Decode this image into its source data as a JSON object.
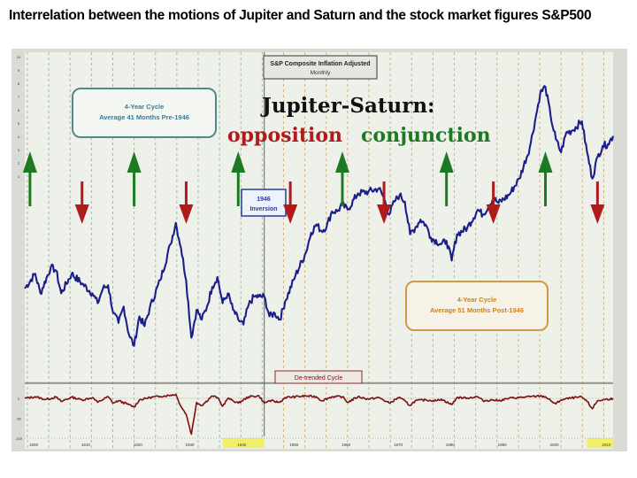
{
  "page_title": "Interrelation between the motions of Jupiter and Saturn and the stock market figures S&P500",
  "colors": {
    "price_line": "#1a1f8a",
    "detrended_line": "#7a1010",
    "conjunction_arrow": "#1e7a22",
    "opposition_arrow": "#b01a1a",
    "pre1946_grid": "#8fb08f",
    "post1946_grid": "#e0a040",
    "plot_bg": "#eef0ea",
    "highlight_band": "#f2f06a"
  },
  "chart_data": [
    {
      "type": "line",
      "title": "S&P Composite Inflation Adjusted",
      "subtitle": "Monthly",
      "heading": "Jupiter-Saturn:",
      "legend": [
        {
          "label": "opposition",
          "color": "#b01a1a"
        },
        {
          "label": "conjunction",
          "color": "#1e7a22"
        }
      ],
      "annotations": [
        {
          "lines": [
            "4-Year Cycle",
            "Average 41 Months Pre-1946"
          ]
        },
        {
          "lines": [
            "1946",
            "Inversion"
          ]
        },
        {
          "lines": [
            "4-Year Cycle",
            "Average 51 Months Post-1946"
          ]
        }
      ],
      "x_ticks": [
        "1900",
        "1910",
        "1920",
        "1930",
        "1940",
        "1950",
        "1960",
        "1970",
        "1980",
        "1990",
        "2000",
        "2010"
      ],
      "y_ticks": [
        "10",
        "9",
        "8",
        "7",
        "6",
        "5",
        "4",
        "3",
        "2",
        "1"
      ],
      "conjunction_years": [
        1901,
        1921,
        1941,
        1961,
        1981,
        2000
      ],
      "opposition_years": [
        1911,
        1931,
        1951,
        1969,
        1990,
        2010
      ],
      "series": [
        {
          "points": [
            [
              1900,
              0.25
            ],
            [
              1902,
              0.34
            ],
            [
              1903,
              0.22
            ],
            [
              1905,
              0.38
            ],
            [
              1906,
              0.36
            ],
            [
              1907,
              0.22
            ],
            [
              1909,
              0.34
            ],
            [
              1911,
              0.28
            ],
            [
              1913,
              0.22
            ],
            [
              1914,
              0.16
            ],
            [
              1915,
              0.25
            ],
            [
              1916,
              0.27
            ],
            [
              1917,
              0.1
            ],
            [
              1918,
              0.04
            ],
            [
              1919,
              0.14
            ],
            [
              1920,
              -0.03
            ],
            [
              1921,
              -0.1
            ],
            [
              1922,
              0.08
            ],
            [
              1923,
              0.02
            ],
            [
              1924,
              0.13
            ],
            [
              1926,
              0.3
            ],
            [
              1928,
              0.52
            ],
            [
              1929,
              0.65
            ],
            [
              1930,
              0.5
            ],
            [
              1931,
              0.3
            ],
            [
              1932,
              -0.05
            ],
            [
              1933,
              0.12
            ],
            [
              1934,
              0.06
            ],
            [
              1935,
              0.14
            ],
            [
              1936,
              0.26
            ],
            [
              1937,
              0.32
            ],
            [
              1938,
              0.16
            ],
            [
              1939,
              0.22
            ],
            [
              1940,
              0.12
            ],
            [
              1941,
              0.06
            ],
            [
              1942,
              0.03
            ],
            [
              1943,
              0.15
            ],
            [
              1944,
              0.2
            ],
            [
              1945,
              0.2
            ],
            [
              1946,
              0.2
            ],
            [
              1947,
              0.08
            ],
            [
              1948,
              0.1
            ],
            [
              1949,
              0.06
            ],
            [
              1950,
              0.17
            ],
            [
              1952,
              0.33
            ],
            [
              1954,
              0.47
            ],
            [
              1955,
              0.59
            ],
            [
              1956,
              0.64
            ],
            [
              1957,
              0.6
            ],
            [
              1958,
              0.63
            ],
            [
              1959,
              0.72
            ],
            [
              1960,
              0.72
            ],
            [
              1961,
              0.76
            ],
            [
              1962,
              0.73
            ],
            [
              1964,
              0.83
            ],
            [
              1966,
              0.84
            ],
            [
              1968,
              0.86
            ],
            [
              1969,
              0.8
            ],
            [
              1970,
              0.7
            ],
            [
              1971,
              0.78
            ],
            [
              1972,
              0.82
            ],
            [
              1973,
              0.78
            ],
            [
              1974,
              0.58
            ],
            [
              1975,
              0.62
            ],
            [
              1976,
              0.67
            ],
            [
              1977,
              0.64
            ],
            [
              1978,
              0.56
            ],
            [
              1980,
              0.52
            ],
            [
              1981,
              0.54
            ],
            [
              1982,
              0.42
            ],
            [
              1983,
              0.58
            ],
            [
              1985,
              0.62
            ],
            [
              1987,
              0.73
            ],
            [
              1988,
              0.7
            ],
            [
              1990,
              0.8
            ],
            [
              1991,
              0.77
            ],
            [
              1993,
              0.82
            ],
            [
              1995,
              0.92
            ],
            [
              1997,
              1.11
            ],
            [
              1998,
              1.27
            ],
            [
              1999,
              1.44
            ],
            [
              2000,
              1.48
            ],
            [
              2001,
              1.3
            ],
            [
              2002,
              1.16
            ],
            [
              2003,
              1.08
            ],
            [
              2004,
              1.2
            ],
            [
              2005,
              1.21
            ],
            [
              2007,
              1.27
            ],
            [
              2008,
              1.08
            ],
            [
              2009,
              0.92
            ],
            [
              2010,
              1.05
            ],
            [
              2011,
              1.12
            ],
            [
              2012,
              1.13
            ],
            [
              2013,
              1.18
            ]
          ]
        }
      ]
    },
    {
      "type": "line",
      "title": "De-trended Cycle",
      "y_ticks": [
        "0",
        "-50",
        "-100"
      ],
      "series": [
        {
          "points": [
            [
              1900,
              0
            ],
            [
              1902,
              4
            ],
            [
              1904,
              -3
            ],
            [
              1906,
              3
            ],
            [
              1907,
              -8
            ],
            [
              1909,
              3
            ],
            [
              1911,
              -4
            ],
            [
              1913,
              2
            ],
            [
              1914,
              -10
            ],
            [
              1916,
              4
            ],
            [
              1917,
              -12
            ],
            [
              1918,
              -6
            ],
            [
              1920,
              -16
            ],
            [
              1921,
              -22
            ],
            [
              1922,
              -4
            ],
            [
              1924,
              2
            ],
            [
              1926,
              5
            ],
            [
              1928,
              8
            ],
            [
              1929,
              10
            ],
            [
              1930,
              -20
            ],
            [
              1931,
              -40
            ],
            [
              1932,
              -90
            ],
            [
              1933,
              -10
            ],
            [
              1934,
              -18
            ],
            [
              1936,
              6
            ],
            [
              1937,
              2
            ],
            [
              1938,
              -20
            ],
            [
              1939,
              0
            ],
            [
              1940,
              -6
            ],
            [
              1941,
              -12
            ],
            [
              1943,
              4
            ],
            [
              1945,
              6
            ],
            [
              1946,
              -12
            ],
            [
              1947,
              -6
            ],
            [
              1949,
              -10
            ],
            [
              1950,
              2
            ],
            [
              1952,
              4
            ],
            [
              1954,
              6
            ],
            [
              1956,
              4
            ],
            [
              1957,
              -6
            ],
            [
              1959,
              4
            ],
            [
              1961,
              4
            ],
            [
              1962,
              -10
            ],
            [
              1964,
              4
            ],
            [
              1966,
              -2
            ],
            [
              1968,
              2
            ],
            [
              1970,
              -12
            ],
            [
              1972,
              3
            ],
            [
              1974,
              -18
            ],
            [
              1975,
              -6
            ],
            [
              1977,
              -4
            ],
            [
              1979,
              -6
            ],
            [
              1980,
              -2
            ],
            [
              1982,
              -16
            ],
            [
              1983,
              2
            ],
            [
              1985,
              1
            ],
            [
              1987,
              4
            ],
            [
              1988,
              -6
            ],
            [
              1990,
              -4
            ],
            [
              1991,
              -6
            ],
            [
              1993,
              0
            ],
            [
              1995,
              2
            ],
            [
              1997,
              4
            ],
            [
              1999,
              6
            ],
            [
              2000,
              4
            ],
            [
              2001,
              -6
            ],
            [
              2002,
              -14
            ],
            [
              2003,
              -4
            ],
            [
              2005,
              1
            ],
            [
              2007,
              3
            ],
            [
              2008,
              -8
            ],
            [
              2009,
              -26
            ],
            [
              2010,
              -6
            ],
            [
              2011,
              -4
            ],
            [
              2013,
              0
            ]
          ]
        }
      ]
    }
  ]
}
